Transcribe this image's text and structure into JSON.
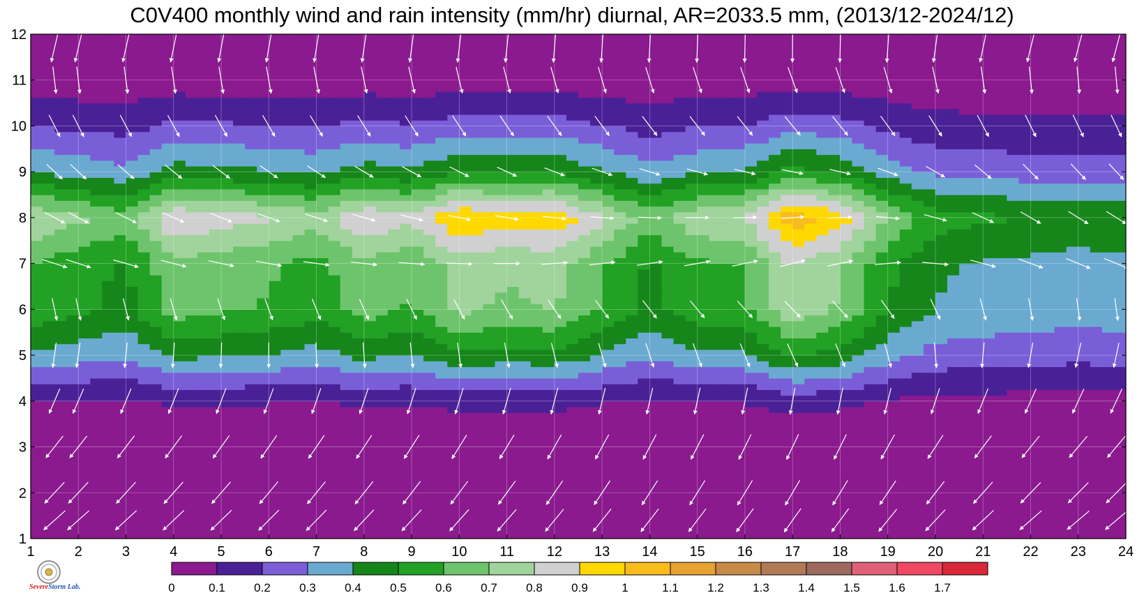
{
  "chart_data": {
    "type": "heatmap",
    "title": "C0V400 monthly wind and rain intensity (mm/hr) diurnal, AR=2033.5 mm, (2013/12-2024/12)",
    "xlabel": "",
    "ylabel": "",
    "x_ticks": [
      "1",
      "2",
      "3",
      "4",
      "5",
      "6",
      "7",
      "8",
      "9",
      "10",
      "11",
      "12",
      "13",
      "14",
      "15",
      "16",
      "17",
      "18",
      "19",
      "20",
      "21",
      "22",
      "23",
      "24"
    ],
    "y_ticks": [
      "1",
      "2",
      "3",
      "4",
      "5",
      "6",
      "7",
      "8",
      "9",
      "10",
      "11",
      "12"
    ],
    "xlim": [
      1,
      24
    ],
    "ylim": [
      1,
      12
    ],
    "grid": true,
    "colorbar": {
      "levels": [
        "0",
        "0.1",
        "0.2",
        "0.3",
        "0.4",
        "0.5",
        "0.6",
        "0.7",
        "0.8",
        "0.9",
        "1",
        "1.1",
        "1.2",
        "1.3",
        "1.4",
        "1.5",
        "1.6",
        "1.7"
      ],
      "colors": [
        "#8a1a8e",
        "#4a2096",
        "#7a5ed8",
        "#6aaad0",
        "#16861a",
        "#22a124",
        "#6ec46c",
        "#a0d49c",
        "#d0d0d0",
        "#ffd800",
        "#f8bc1c",
        "#e6a232",
        "#c88a48",
        "#b07a56",
        "#9c6a5e",
        "#e0607a",
        "#f04862",
        "#d8283a"
      ]
    },
    "month_peaks": [
      0.0,
      0.0,
      0.0,
      0.13,
      0.48,
      0.72,
      0.75,
      1.0,
      0.5,
      0.25,
      0.05,
      0.0
    ],
    "hour_factors": [
      0.8,
      0.72,
      0.65,
      0.9,
      0.85,
      0.82,
      0.75,
      0.9,
      0.82,
      1.0,
      0.95,
      0.98,
      0.82,
      0.65,
      0.78,
      0.8,
      1.08,
      0.95,
      0.7,
      0.55,
      0.52,
      0.5,
      0.48,
      0.5
    ],
    "wind_dirs_deg": [
      225,
      220,
      215,
      200,
      180,
      160,
      100,
      110,
      125,
      150,
      170,
      190
    ],
    "wind_dir_hour_shift": [
      8,
      8,
      6,
      4,
      2,
      0,
      -2,
      -4,
      -6,
      -8,
      -10,
      -14,
      -16,
      -18,
      -20,
      -22,
      -24,
      -22,
      -15,
      -5,
      5,
      10,
      12,
      12
    ],
    "wind_speeds": [
      0.9,
      0.9,
      0.85,
      0.8,
      0.7,
      0.55,
      0.75,
      0.6,
      0.5,
      0.65,
      0.8,
      0.9
    ]
  },
  "logo": {
    "text_a": "Severe",
    "text_b": "Storm",
    "text_c": "Lab."
  }
}
